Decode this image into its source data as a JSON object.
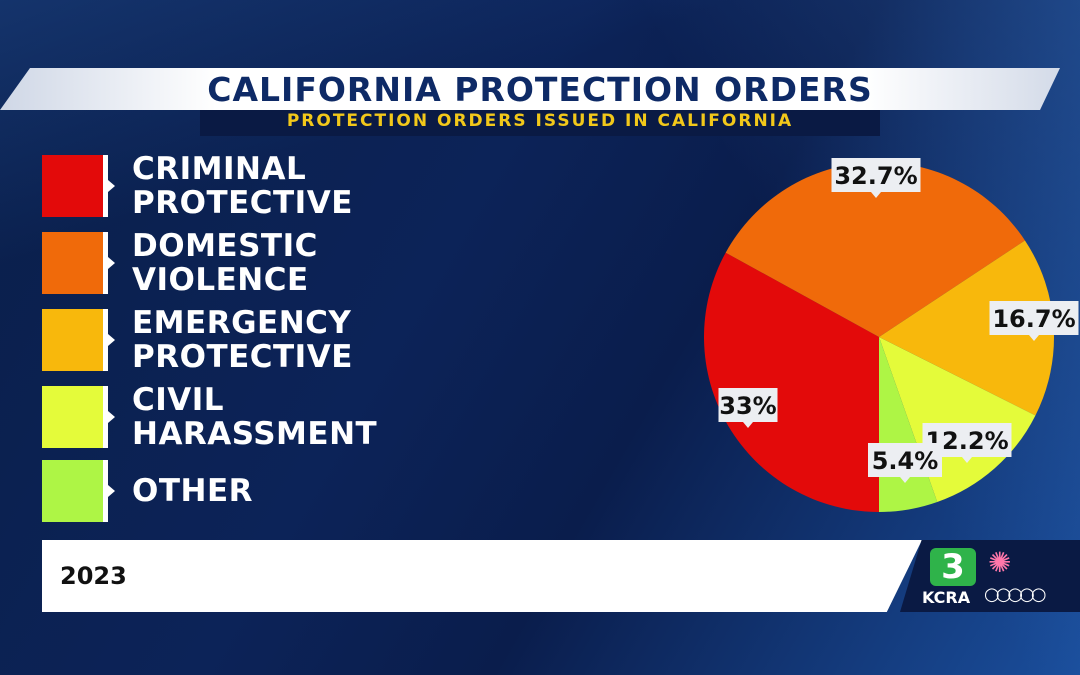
{
  "header": {
    "title": "CALIFORNIA PROTECTION ORDERS",
    "subtitle": "PROTECTION ORDERS ISSUED IN CALIFORNIA"
  },
  "footer": {
    "date": "2023",
    "logo_number": "3",
    "logo_text": "KCRA"
  },
  "chart_data": {
    "type": "pie",
    "title": "CALIFORNIA PROTECTION ORDERS",
    "subtitle": "PROTECTION ORDERS ISSUED IN CALIFORNIA",
    "categories": [
      "CRIMINAL PROTECTIVE",
      "DOMESTIC VIOLENCE",
      "EMERGENCY PROTECTIVE",
      "CIVIL HARASSMENT",
      "OTHER"
    ],
    "values": [
      33,
      32.7,
      16.7,
      12.2,
      5.4
    ],
    "labels": [
      "33%",
      "32.7%",
      "16.7%",
      "12.2%",
      "5.4%"
    ],
    "colors": [
      "#e30a0a",
      "#f06a0a",
      "#f8b80c",
      "#e4fb3a",
      "#aef545"
    ],
    "legend_placement": "left"
  }
}
